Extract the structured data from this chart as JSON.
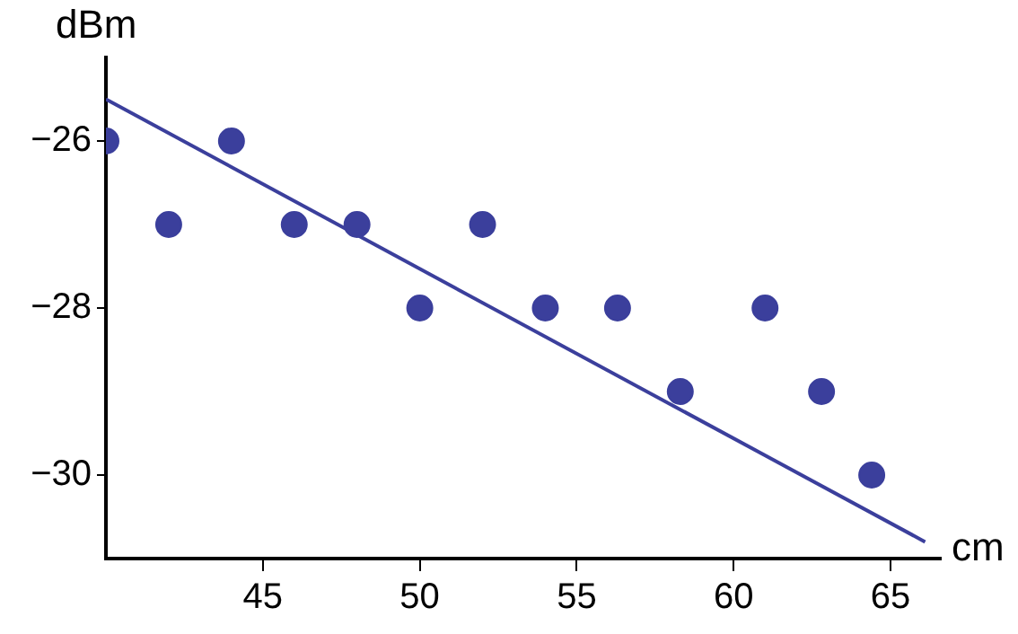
{
  "chart_data": {
    "type": "scatter",
    "xlabel": "cm",
    "ylabel": "dBm",
    "x": [
      40,
      42,
      44,
      46,
      48,
      50,
      52,
      54,
      56.3,
      58.3,
      61,
      62.8,
      64.4
    ],
    "series": [
      {
        "type": "scatter",
        "marker": "circle",
        "color": "#3b3f9c",
        "values": [
          -26,
          -27,
          -26,
          -27,
          -27,
          -28,
          -27,
          -28,
          -28,
          -29,
          -28,
          -29,
          -30
        ]
      },
      {
        "type": "line",
        "marker": "none",
        "color": "#3b3f9c",
        "x": [
          40,
          66.1
        ],
        "values": [
          -25.5,
          -30.8
        ]
      }
    ],
    "xlim": [
      40,
      66.6
    ],
    "xticks": [
      45,
      50,
      55,
      60,
      65
    ],
    "ylim": [
      -31,
      -25
    ],
    "yticks": [
      {
        "value": -26,
        "label": "−26"
      },
      {
        "value": -28,
        "label": "−28"
      },
      {
        "value": -30,
        "label": "−30"
      }
    ],
    "grid": false,
    "legend": false
  }
}
